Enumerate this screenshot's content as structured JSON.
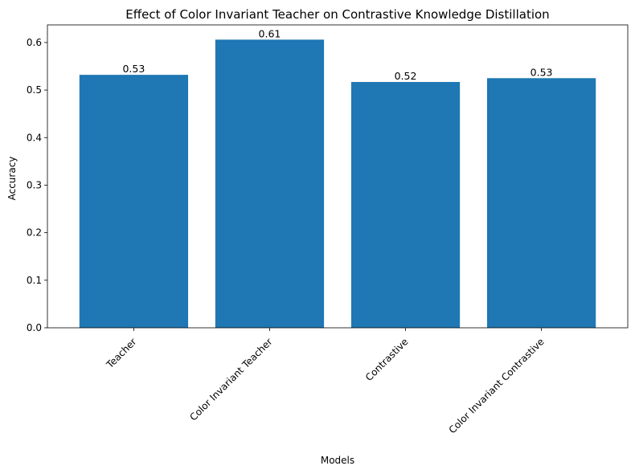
{
  "chart_data": {
    "type": "bar",
    "title": "Effect of Color Invariant Teacher on Contrastive Knowledge Distillation",
    "xlabel": "Models",
    "ylabel": "Accuracy",
    "categories": [
      "Teacher",
      "Color Invariant Teacher",
      "Contrastive",
      "Color Invariant Contrastive"
    ],
    "values": [
      0.532,
      0.606,
      0.517,
      0.525
    ],
    "value_labels": [
      "0.53",
      "0.61",
      "0.52",
      "0.53"
    ],
    "ylim": [
      0,
      0.637
    ],
    "yticks": [
      0.0,
      0.1,
      0.2,
      0.3,
      0.4,
      0.5,
      0.6
    ],
    "ytick_labels": [
      "0.0",
      "0.1",
      "0.2",
      "0.3",
      "0.4",
      "0.5",
      "0.6"
    ],
    "bar_color": "#1f77b4",
    "grid": false,
    "legend": "none"
  }
}
